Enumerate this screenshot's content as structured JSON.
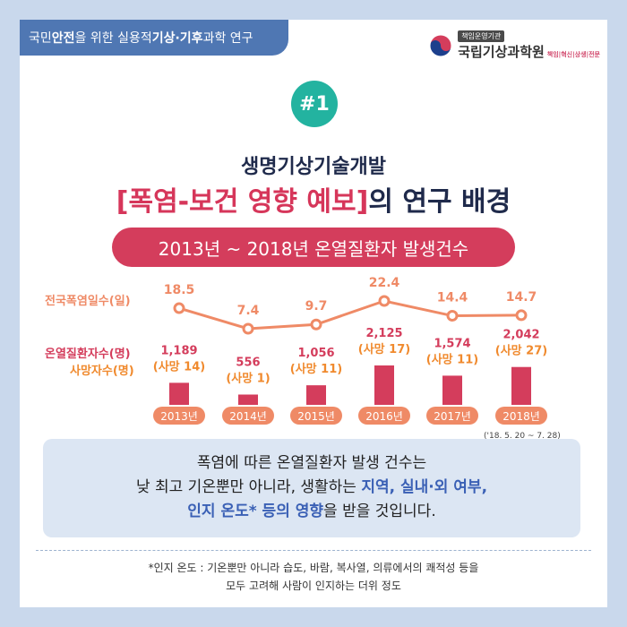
{
  "header": {
    "tag_pre": "국민 ",
    "tag_b1": "안전",
    "tag_mid": "을 위한 실용적 ",
    "tag_b2": "기상·기후",
    "tag_post": " 과학 연구",
    "org_small": "책임운영기관",
    "org_name": "국립기상과학원",
    "org_slogan": "책임|혁신|상생|전문"
  },
  "badge": "#1",
  "title": {
    "line1": "생명기상기술개발",
    "line2_highlight": "[폭염-보건 영향 예보]",
    "line2_rest": "의 연구 배경"
  },
  "pill": "2013년 ~ 2018년 온열질환자 발생건수",
  "row_labels": {
    "heatwave_days": "전국폭염일수(일)",
    "patients": "온열질환자수(명)",
    "deaths": "사망자수(명)"
  },
  "chart_data": {
    "type": "bar+line",
    "categories": [
      "2013년",
      "2014년",
      "2015년",
      "2016년",
      "2017년",
      "2018년"
    ],
    "line_series": {
      "name": "전국폭염일수(일)",
      "values": [
        18.5,
        7.4,
        9.7,
        22.4,
        14.4,
        14.7
      ],
      "labels": [
        "18.5",
        "7.4",
        "9.7",
        "22.4",
        "14.4",
        "14.7"
      ]
    },
    "bar_series": {
      "name": "온열질환자수(명)",
      "values": [
        1189,
        556,
        1056,
        2125,
        1574,
        2042
      ],
      "labels": [
        "1,189",
        "556",
        "1,056",
        "2,125",
        "1,574",
        "2,042"
      ]
    },
    "death_series": {
      "name": "사망자수(명)",
      "values": [
        14,
        1,
        11,
        17,
        11,
        27
      ],
      "labels": [
        "(사망 14)",
        "(사망 1)",
        "(사망 11)",
        "(사망 17)",
        "(사망 11)",
        "(사망 27)"
      ]
    },
    "colors": {
      "line": "#ef8a66",
      "bar": "#d43d5c",
      "death": "#f08a2e",
      "year_pill": "#ef8a66"
    }
  },
  "period_note": "('18. 5. 20 ~ 7. 28)",
  "summary": {
    "line1": "폭염에 따른 온열질환자 발생 건수는",
    "line2_pre": "낮 최고 기온뿐만 아니라, 생활하는 ",
    "line2_em": "지역, 실내·외 여부,",
    "line3_em": "인지 온도* 등의 영향",
    "line3_post": "을 받을 것입니다."
  },
  "footnote": {
    "line1": "*인지 온도 : 기온뿐만 아니라 습도, 바람, 복사열, 의류에서의 쾌적성 등을",
    "line2": "모두 고려해 사람이 인지하는 더위 정도"
  }
}
